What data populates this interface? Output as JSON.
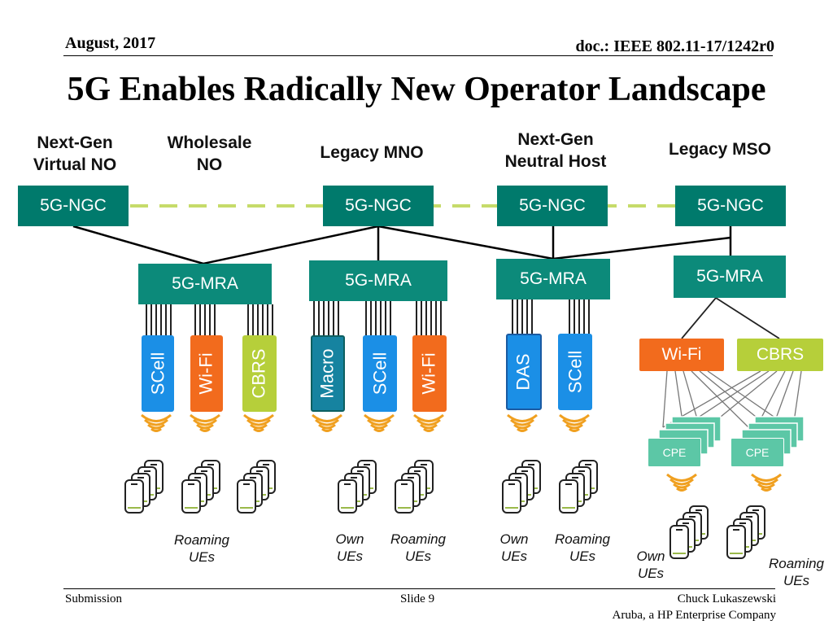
{
  "header": {
    "date": "August, 2017",
    "doc": "doc.: IEEE 802.11-17/1242r0"
  },
  "title": "5G Enables Radically New Operator Landscape",
  "operators": [
    {
      "line1": "Next-Gen",
      "line2": "Virtual NO"
    },
    {
      "line1": "Wholesale",
      "line2": "NO"
    },
    {
      "line1": "Legacy MNO",
      "line2": ""
    },
    {
      "line1": "Next-Gen",
      "line2": "Neutral Host"
    },
    {
      "line1": "Legacy MSO",
      "line2": ""
    }
  ],
  "ngc_label": "5G-NGC",
  "mra_label": "5G-MRA",
  "radios": {
    "scell": "SCell",
    "wifi": "Wi-Fi",
    "cbrs": "CBRS",
    "macro": "Macro",
    "das": "DAS"
  },
  "cpe_label": "CPE",
  "ue_labels": {
    "roaming_line1": "Roaming",
    "own_line1": "Own",
    "line2": "UEs"
  },
  "colors": {
    "ngc": "#007a6c",
    "mra": "#0c8a7a",
    "scell": "#1b8fe6",
    "wifi": "#f26b1d",
    "cbrs": "#b6cf3a",
    "cpe": "#5cc7a6",
    "signal": "#f0a020",
    "dashed_link": "#c6db6a"
  },
  "footer": {
    "left": "Submission",
    "center": "Slide 9",
    "author": "Chuck Lukaszewski",
    "company": "Aruba, a HP Enterprise Company"
  }
}
